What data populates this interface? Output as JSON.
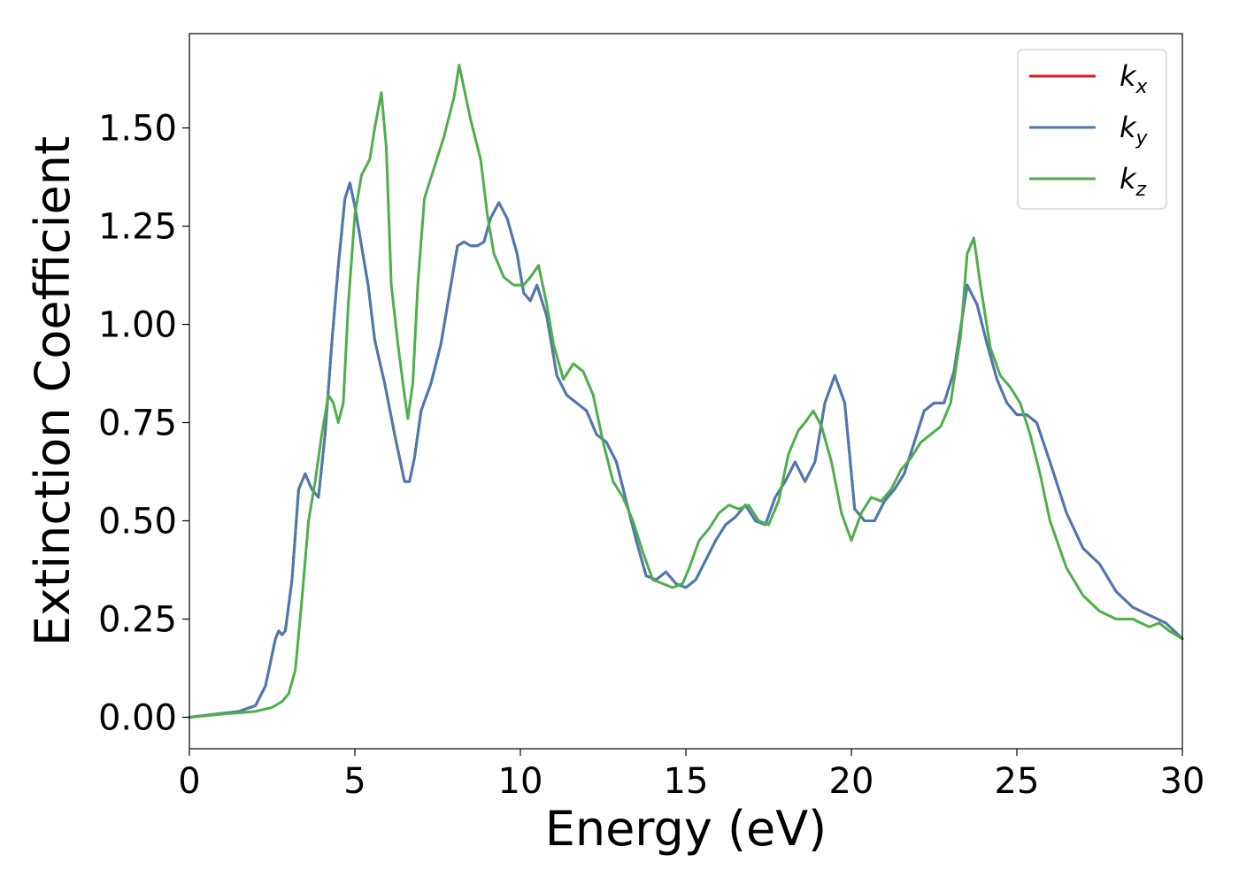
{
  "chart_data": {
    "type": "line",
    "xlabel": "Energy (eV)",
    "ylabel": "Extinction Coefficient",
    "xlim": [
      0,
      30
    ],
    "ylim": [
      -0.08,
      1.74
    ],
    "xticks": [
      0,
      5,
      10,
      15,
      20,
      25,
      30
    ],
    "yticks": [
      0.0,
      0.25,
      0.5,
      0.75,
      1.0,
      1.25,
      1.5
    ],
    "ytick_labels": [
      "0.00",
      "0.25",
      "0.50",
      "0.75",
      "1.00",
      "1.25",
      "1.50"
    ],
    "grid": false,
    "legend_position": "top-right",
    "series": [
      {
        "name": "k",
        "sub": "x",
        "color": "#e41a1c",
        "x": [
          0,
          1,
          1.5,
          2,
          2.3,
          2.6,
          2.7,
          2.8,
          2.9,
          3.1,
          3.3,
          3.5,
          3.7,
          3.9,
          4.1,
          4.3,
          4.5,
          4.7,
          4.85,
          5.0,
          5.2,
          5.4,
          5.6,
          5.9,
          6.2,
          6.5,
          6.65,
          6.8,
          7.0,
          7.3,
          7.6,
          7.9,
          8.1,
          8.3,
          8.5,
          8.7,
          8.9,
          9.1,
          9.35,
          9.6,
          9.9,
          10.1,
          10.3,
          10.5,
          10.8,
          11.1,
          11.4,
          11.7,
          12.0,
          12.3,
          12.6,
          12.9,
          13.2,
          13.5,
          13.8,
          14.1,
          14.4,
          14.7,
          15.0,
          15.3,
          15.6,
          15.9,
          16.2,
          16.5,
          16.8,
          17.1,
          17.4,
          17.7,
          18.0,
          18.3,
          18.6,
          18.9,
          19.2,
          19.5,
          19.8,
          20.1,
          20.4,
          20.7,
          21.0,
          21.3,
          21.6,
          21.9,
          22.2,
          22.5,
          22.8,
          23.1,
          23.5,
          23.8,
          24.1,
          24.4,
          24.7,
          25.0,
          25.3,
          25.6,
          26.0,
          26.5,
          27.0,
          27.5,
          28.0,
          28.5,
          29.0,
          29.5,
          30.0
        ],
        "y": [
          0.0,
          0.01,
          0.015,
          0.03,
          0.08,
          0.2,
          0.22,
          0.21,
          0.22,
          0.35,
          0.58,
          0.62,
          0.58,
          0.56,
          0.72,
          0.95,
          1.15,
          1.32,
          1.36,
          1.3,
          1.2,
          1.1,
          0.96,
          0.85,
          0.72,
          0.6,
          0.6,
          0.66,
          0.78,
          0.85,
          0.95,
          1.1,
          1.2,
          1.21,
          1.2,
          1.2,
          1.21,
          1.27,
          1.31,
          1.27,
          1.18,
          1.08,
          1.06,
          1.1,
          1.02,
          0.87,
          0.82,
          0.8,
          0.78,
          0.72,
          0.7,
          0.65,
          0.55,
          0.45,
          0.36,
          0.35,
          0.37,
          0.34,
          0.33,
          0.35,
          0.4,
          0.45,
          0.49,
          0.51,
          0.54,
          0.5,
          0.49,
          0.56,
          0.6,
          0.65,
          0.6,
          0.65,
          0.8,
          0.87,
          0.8,
          0.53,
          0.5,
          0.5,
          0.55,
          0.58,
          0.62,
          0.7,
          0.78,
          0.8,
          0.8,
          0.88,
          1.1,
          1.05,
          0.95,
          0.86,
          0.8,
          0.77,
          0.77,
          0.75,
          0.65,
          0.52,
          0.43,
          0.39,
          0.32,
          0.28,
          0.26,
          0.24,
          0.2
        ]
      },
      {
        "name": "k",
        "sub": "y",
        "color": "#4a7ab4",
        "x": [
          0,
          1,
          1.5,
          2,
          2.3,
          2.6,
          2.7,
          2.8,
          2.9,
          3.1,
          3.3,
          3.5,
          3.7,
          3.9,
          4.1,
          4.3,
          4.5,
          4.7,
          4.85,
          5.0,
          5.2,
          5.4,
          5.6,
          5.9,
          6.2,
          6.5,
          6.65,
          6.8,
          7.0,
          7.3,
          7.6,
          7.9,
          8.1,
          8.3,
          8.5,
          8.7,
          8.9,
          9.1,
          9.35,
          9.6,
          9.9,
          10.1,
          10.3,
          10.5,
          10.8,
          11.1,
          11.4,
          11.7,
          12.0,
          12.3,
          12.6,
          12.9,
          13.2,
          13.5,
          13.8,
          14.1,
          14.4,
          14.7,
          15.0,
          15.3,
          15.6,
          15.9,
          16.2,
          16.5,
          16.8,
          17.1,
          17.4,
          17.7,
          18.0,
          18.3,
          18.6,
          18.9,
          19.2,
          19.5,
          19.8,
          20.1,
          20.4,
          20.7,
          21.0,
          21.3,
          21.6,
          21.9,
          22.2,
          22.5,
          22.8,
          23.1,
          23.5,
          23.8,
          24.1,
          24.4,
          24.7,
          25.0,
          25.3,
          25.6,
          26.0,
          26.5,
          27.0,
          27.5,
          28.0,
          28.5,
          29.0,
          29.5,
          30.0
        ],
        "y": [
          0.0,
          0.01,
          0.015,
          0.03,
          0.08,
          0.2,
          0.22,
          0.21,
          0.22,
          0.35,
          0.58,
          0.62,
          0.58,
          0.56,
          0.72,
          0.95,
          1.15,
          1.32,
          1.36,
          1.3,
          1.2,
          1.1,
          0.96,
          0.85,
          0.72,
          0.6,
          0.6,
          0.66,
          0.78,
          0.85,
          0.95,
          1.1,
          1.2,
          1.21,
          1.2,
          1.2,
          1.21,
          1.27,
          1.31,
          1.27,
          1.18,
          1.08,
          1.06,
          1.1,
          1.02,
          0.87,
          0.82,
          0.8,
          0.78,
          0.72,
          0.7,
          0.65,
          0.55,
          0.45,
          0.36,
          0.35,
          0.37,
          0.34,
          0.33,
          0.35,
          0.4,
          0.45,
          0.49,
          0.51,
          0.54,
          0.5,
          0.49,
          0.56,
          0.6,
          0.65,
          0.6,
          0.65,
          0.8,
          0.87,
          0.8,
          0.53,
          0.5,
          0.5,
          0.55,
          0.58,
          0.62,
          0.7,
          0.78,
          0.8,
          0.8,
          0.88,
          1.1,
          1.05,
          0.95,
          0.86,
          0.8,
          0.77,
          0.77,
          0.75,
          0.65,
          0.52,
          0.43,
          0.39,
          0.32,
          0.28,
          0.26,
          0.24,
          0.2
        ]
      },
      {
        "name": "k",
        "sub": "z",
        "color": "#4daf4a",
        "x": [
          0,
          1,
          2,
          2.5,
          2.8,
          3.0,
          3.2,
          3.4,
          3.6,
          3.8,
          4.0,
          4.2,
          4.35,
          4.5,
          4.65,
          4.8,
          5.0,
          5.2,
          5.45,
          5.6,
          5.8,
          5.95,
          6.1,
          6.3,
          6.5,
          6.6,
          6.75,
          6.9,
          7.1,
          7.4,
          7.7,
          8.0,
          8.15,
          8.3,
          8.5,
          8.8,
          9.0,
          9.2,
          9.5,
          9.8,
          10.1,
          10.3,
          10.55,
          10.8,
          11.0,
          11.3,
          11.6,
          11.9,
          12.2,
          12.5,
          12.8,
          13.1,
          13.4,
          13.7,
          14.0,
          14.3,
          14.6,
          14.9,
          15.1,
          15.4,
          15.7,
          16.0,
          16.3,
          16.6,
          16.9,
          17.2,
          17.5,
          17.8,
          18.1,
          18.4,
          18.6,
          18.85,
          19.1,
          19.4,
          19.7,
          20.0,
          20.3,
          20.6,
          20.9,
          21.2,
          21.5,
          21.8,
          22.1,
          22.4,
          22.7,
          23.0,
          23.3,
          23.5,
          23.7,
          23.9,
          24.2,
          24.5,
          24.8,
          25.1,
          25.4,
          25.7,
          26.0,
          26.5,
          27.0,
          27.5,
          28.0,
          28.5,
          29.0,
          29.3,
          29.6,
          30.0
        ],
        "y": [
          0.0,
          0.008,
          0.015,
          0.025,
          0.04,
          0.06,
          0.12,
          0.3,
          0.5,
          0.6,
          0.72,
          0.82,
          0.8,
          0.75,
          0.8,
          1.05,
          1.28,
          1.38,
          1.42,
          1.5,
          1.59,
          1.45,
          1.1,
          0.95,
          0.82,
          0.76,
          0.85,
          1.1,
          1.32,
          1.4,
          1.48,
          1.58,
          1.66,
          1.6,
          1.52,
          1.42,
          1.28,
          1.18,
          1.12,
          1.1,
          1.1,
          1.12,
          1.15,
          1.05,
          0.95,
          0.86,
          0.9,
          0.88,
          0.82,
          0.7,
          0.6,
          0.56,
          0.5,
          0.42,
          0.35,
          0.34,
          0.33,
          0.34,
          0.38,
          0.45,
          0.48,
          0.52,
          0.54,
          0.53,
          0.54,
          0.5,
          0.49,
          0.55,
          0.67,
          0.73,
          0.75,
          0.78,
          0.74,
          0.65,
          0.52,
          0.45,
          0.52,
          0.56,
          0.55,
          0.58,
          0.63,
          0.66,
          0.7,
          0.72,
          0.74,
          0.8,
          0.97,
          1.18,
          1.22,
          1.1,
          0.94,
          0.87,
          0.84,
          0.8,
          0.72,
          0.62,
          0.5,
          0.38,
          0.31,
          0.27,
          0.25,
          0.25,
          0.23,
          0.24,
          0.22,
          0.2
        ]
      }
    ]
  }
}
